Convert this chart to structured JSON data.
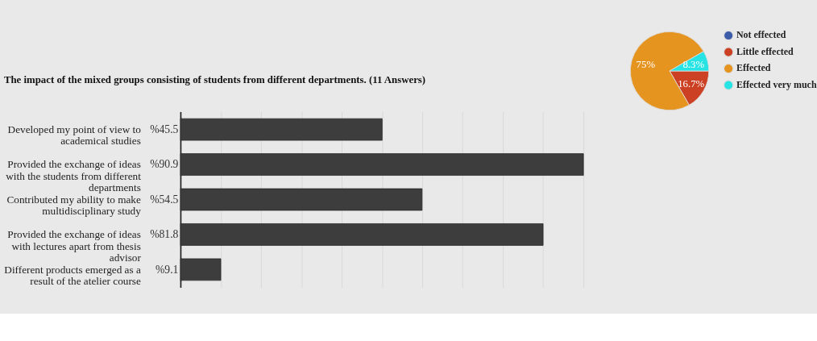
{
  "chart_data": [
    {
      "type": "pie",
      "categories": [
        "Not effected",
        "Little effected",
        "Effected",
        "Effected very much"
      ],
      "values": [
        0,
        16.7,
        75,
        8.3
      ],
      "colors": [
        "#3c5ba9",
        "#cc4124",
        "#e69420",
        "#28e3e3"
      ],
      "value_labels": [
        null,
        "16.7%",
        "75%",
        "8.3%"
      ],
      "legend": "right"
    },
    {
      "type": "bar",
      "orientation": "horizontal",
      "title": "The impact of the mixed groups consisting of students from different departments. (11 Answers)",
      "categories": [
        "Developed my point of view to academical studies",
        "Provided the exchange of ideas with the students from different departments",
        "Contributed my ability to make multidisciplinary study",
        "Provided the exchange of ideas with lectures apart from thesis advisor",
        "Different products emerged as a result of the atelier course"
      ],
      "values": [
        45.5,
        90.9,
        54.5,
        81.8,
        9.1
      ],
      "color": "#3d3d3d",
      "value_labels": [
        "%45.5",
        "%90.9",
        "%54.5",
        "%81.8",
        "%9.1"
      ],
      "xlim": [
        0,
        90.9
      ],
      "xticks": [
        {
          "value": 9.1,
          "label": null
        },
        {
          "value": 18.2,
          "label": null
        },
        {
          "value": 27.3,
          "label": null
        },
        {
          "value": 36.4,
          "label": null
        },
        {
          "value": 45.5,
          "label": null
        },
        {
          "value": 54.5,
          "label": null
        },
        {
          "value": 63.6,
          "label": null
        },
        {
          "value": 72.7,
          "label": null
        },
        {
          "value": 81.8,
          "label": null
        },
        {
          "value": 90.9,
          "label": null
        }
      ],
      "tick_labels": "y",
      "grid": "x"
    }
  ]
}
